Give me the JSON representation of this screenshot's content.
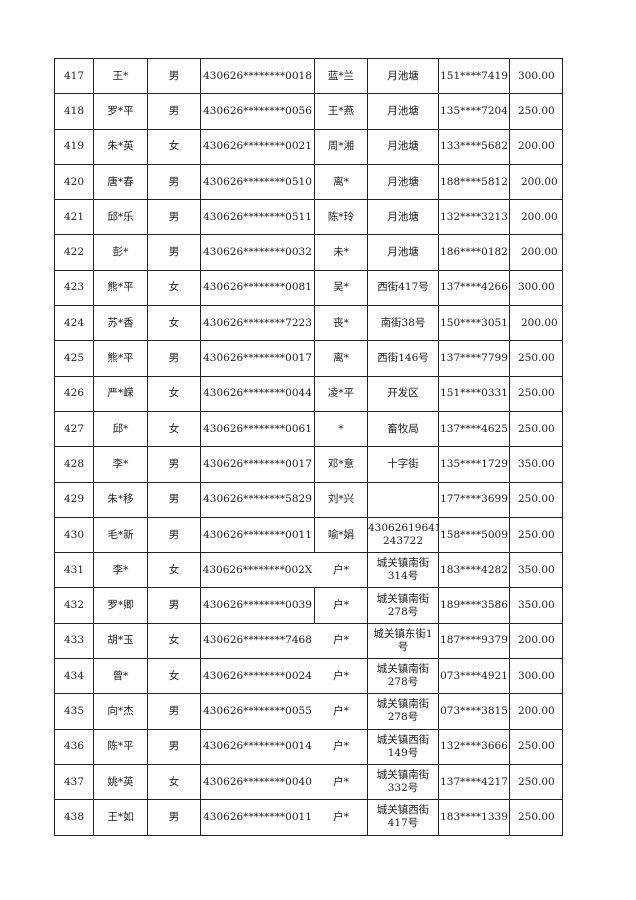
{
  "rows": [
    {
      "no": "417",
      "name": "王*",
      "sex": "男",
      "id": "430626********0018",
      "rel": "蓝*兰",
      "addr": "月池塘",
      "phone": "151****7419",
      "amount": "300.00"
    },
    {
      "no": "418",
      "name": "罗*平",
      "sex": "男",
      "id": "430626********0056",
      "rel": "王*燕",
      "addr": "月池塘",
      "phone": "135****7204",
      "amount": "250.00"
    },
    {
      "no": "419",
      "name": "朱*英",
      "sex": "女",
      "id": "430626********0021",
      "rel": "周*湘",
      "addr": "月池塘",
      "phone": "133****5682",
      "amount": "200.00"
    },
    {
      "no": "420",
      "name": "唐*春",
      "sex": "男",
      "id": "430626********0510",
      "rel": "离*",
      "addr": "月池塘",
      "phone": "188****5812",
      "amount": "200.00"
    },
    {
      "no": "421",
      "name": "邱*乐",
      "sex": "男",
      "id": "430626********0511",
      "rel": "陈*玲",
      "addr": "月池塘",
      "phone": "132****3213",
      "amount": "200.00"
    },
    {
      "no": "422",
      "name": "彭*",
      "sex": "男",
      "id": "430626********0032",
      "rel": "未*",
      "addr": "月池塘",
      "phone": "186****0182",
      "amount": "200.00"
    },
    {
      "no": "423",
      "name": "熊*平",
      "sex": "女",
      "id": "430626********0081",
      "rel": "吴*",
      "addr": "西街417号",
      "phone": "137****4266",
      "amount": "300.00"
    },
    {
      "no": "424",
      "name": "苏*香",
      "sex": "女",
      "id": "430626********7223",
      "rel": "丧*",
      "addr": "南街38号",
      "phone": "150****3051",
      "amount": "200.00"
    },
    {
      "no": "425",
      "name": "熊*平",
      "sex": "男",
      "id": "430626********0017",
      "rel": "离*",
      "addr": "西街146号",
      "phone": "137****7799",
      "amount": "250.00"
    },
    {
      "no": "426",
      "name": "严*嵘",
      "sex": "女",
      "id": "430626********0044",
      "rel": "凌*平",
      "addr": "开发区",
      "phone": "151****0331",
      "amount": "250.00"
    },
    {
      "no": "427",
      "name": "邱*",
      "sex": "女",
      "id": "430626********0061",
      "rel": "*",
      "addr": "畜牧局",
      "phone": "137****4625",
      "amount": "250.00"
    },
    {
      "no": "428",
      "name": "李*",
      "sex": "男",
      "id": "430626********0017",
      "rel": "邓*意",
      "addr": "十字街",
      "phone": "135****1729",
      "amount": "350.00"
    },
    {
      "no": "429",
      "name": "朱*移",
      "sex": "男",
      "id": "430626********5829",
      "rel": "刘*兴",
      "addr": "",
      "phone": "177****3699",
      "amount": "250.00"
    },
    {
      "no": "430",
      "name": "毛*新",
      "sex": "男",
      "id": "430626********0011",
      "rel": "喻*娟",
      "addr": "430626196411 243722",
      "phone": "158****5009",
      "amount": "250.00"
    },
    {
      "no": "431",
      "name": "李*",
      "sex": "女",
      "id": "430626********002X",
      "rel": "户*",
      "addr": "城关镇南街 314号",
      "phone": "183****4282",
      "amount": "350.00"
    },
    {
      "no": "432",
      "name": "罗*卿",
      "sex": "男",
      "id": "430626********0039",
      "rel": "户*",
      "addr": "城关镇南街 278号",
      "phone": "189****3586",
      "amount": "350.00"
    },
    {
      "no": "433",
      "name": "胡*玉",
      "sex": "女",
      "id": "430626********7468",
      "rel": "户*",
      "addr": "城关镇东街1 号",
      "phone": "187****9379",
      "amount": "200.00"
    },
    {
      "no": "434",
      "name": "曾*",
      "sex": "女",
      "id": "430626********0024",
      "rel": "户*",
      "addr": "城关镇南街 278号",
      "phone": "073****4921",
      "amount": "300.00"
    },
    {
      "no": "435",
      "name": "向*杰",
      "sex": "男",
      "id": "430626********0055",
      "rel": "户*",
      "addr": "城关镇南街 278号",
      "phone": "073****3815",
      "amount": "200.00"
    },
    {
      "no": "436",
      "name": "陈*平",
      "sex": "男",
      "id": "430626********0014",
      "rel": "户*",
      "addr": "城关镇西街 149号",
      "phone": "132****3666",
      "amount": "250.00"
    },
    {
      "no": "437",
      "name": "姚*英",
      "sex": "女",
      "id": "430626********0040",
      "rel": "户*",
      "addr": "城关镇南街 332号",
      "phone": "137****4217",
      "amount": "250.00"
    },
    {
      "no": "438",
      "name": "王*如",
      "sex": "男",
      "id": "430626********0011",
      "rel": "户*",
      "addr": "城关镇西街 417号",
      "phone": "183****1339",
      "amount": "250.00"
    }
  ]
}
